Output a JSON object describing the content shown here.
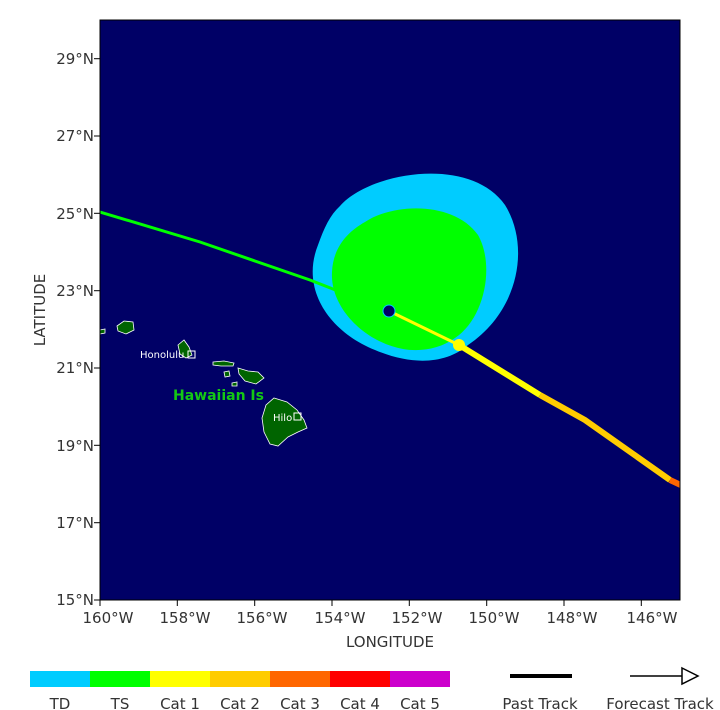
{
  "map": {
    "axes": {
      "xlabel": "LONGITUDE",
      "ylabel": "LATITUDE",
      "lon_range": [
        -160.2,
        -145.2
      ],
      "lat_range": [
        15,
        30
      ],
      "xticks": [
        "160°W",
        "158°W",
        "156°W",
        "154°W",
        "152°W",
        "150°W",
        "148°W",
        "146°W"
      ],
      "yticks": [
        "29°N",
        "27°N",
        "25°N",
        "23°N",
        "21°N",
        "19°N",
        "17°N",
        "15°N"
      ]
    },
    "places": {
      "honolulu": "Honolulu",
      "hilo": "Hilo",
      "region": "Hawaiian Is"
    },
    "colors": {
      "ocean": "#000066",
      "land": "#006400",
      "td": "#00ccff",
      "ts": "#00ff00",
      "cat1": "#ffff00",
      "cat2": "#ffcc00",
      "cat3": "#ff6600",
      "cat4": "#ff0000",
      "cat5": "#cc00cc"
    },
    "storm": {
      "current_position": {
        "lon": -152.7,
        "lat": 22.5
      },
      "forecast_point": {
        "lon": -150.9,
        "lat": 21.6
      }
    }
  },
  "legend": {
    "categories": [
      "TD",
      "TS",
      "Cat 1",
      "Cat 2",
      "Cat 3",
      "Cat 4",
      "Cat 5"
    ],
    "past_track": "Past Track",
    "forecast_track": "Forecast Track"
  }
}
